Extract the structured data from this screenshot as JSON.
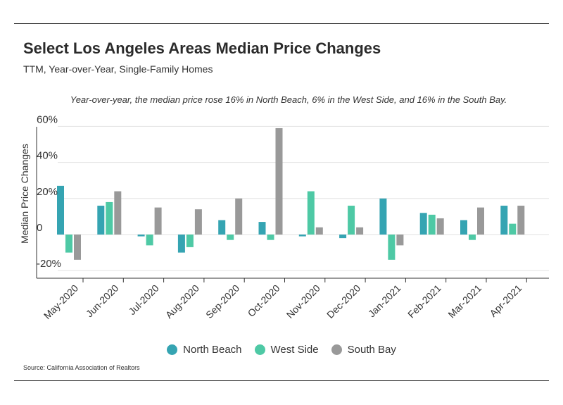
{
  "header": {
    "title": "Select Los Angeles Areas Median Price Changes",
    "subtitle": "TTM, Year-over-Year, Single-Family Homes"
  },
  "annotation": "Year-over-year, the median price rose 16% in North Beach, 6% in the West Side, and 16% in the South Bay.",
  "source": "Source:  California Association of Realtors",
  "colors": {
    "north_beach": "#35a4b2",
    "west_side": "#4ec9a5",
    "south_bay": "#999999",
    "grid": "#e2e2e2",
    "axis": "#333333"
  },
  "chart_data": {
    "type": "bar",
    "title": "Select Los Angeles Areas Median Price Changes",
    "subtitle": "TTM, Year-over-Year, Single-Family Homes",
    "xlabel": "",
    "ylabel": "Median Price Changes",
    "ylim": [
      -20,
      60
    ],
    "yticks": [
      -20,
      0,
      20,
      40,
      60
    ],
    "ytick_labels": [
      "-20%",
      "0",
      "20%",
      "40%",
      "60%"
    ],
    "grid": true,
    "legend_position": "bottom-center",
    "categories": [
      "May-2020",
      "Jun-2020",
      "Jul-2020",
      "Aug-2020",
      "Sep-2020",
      "Oct-2020",
      "Nov-2020",
      "Dec-2020",
      "Jan-2021",
      "Feb-2021",
      "Mar-2021",
      "Apr-2021"
    ],
    "series": [
      {
        "name": "North Beach",
        "color": "#35a4b2",
        "values": [
          27,
          16,
          -1,
          -10,
          8,
          7,
          -1,
          -2,
          20,
          12,
          8,
          16
        ]
      },
      {
        "name": "West Side",
        "color": "#4ec9a5",
        "values": [
          -10,
          18,
          -6,
          -7,
          -3,
          -3,
          24,
          16,
          -14,
          11,
          -3,
          6
        ]
      },
      {
        "name": "South Bay",
        "color": "#999999",
        "values": [
          -14,
          24,
          15,
          14,
          20,
          59,
          4,
          4,
          -6,
          9,
          15,
          16
        ]
      }
    ]
  }
}
